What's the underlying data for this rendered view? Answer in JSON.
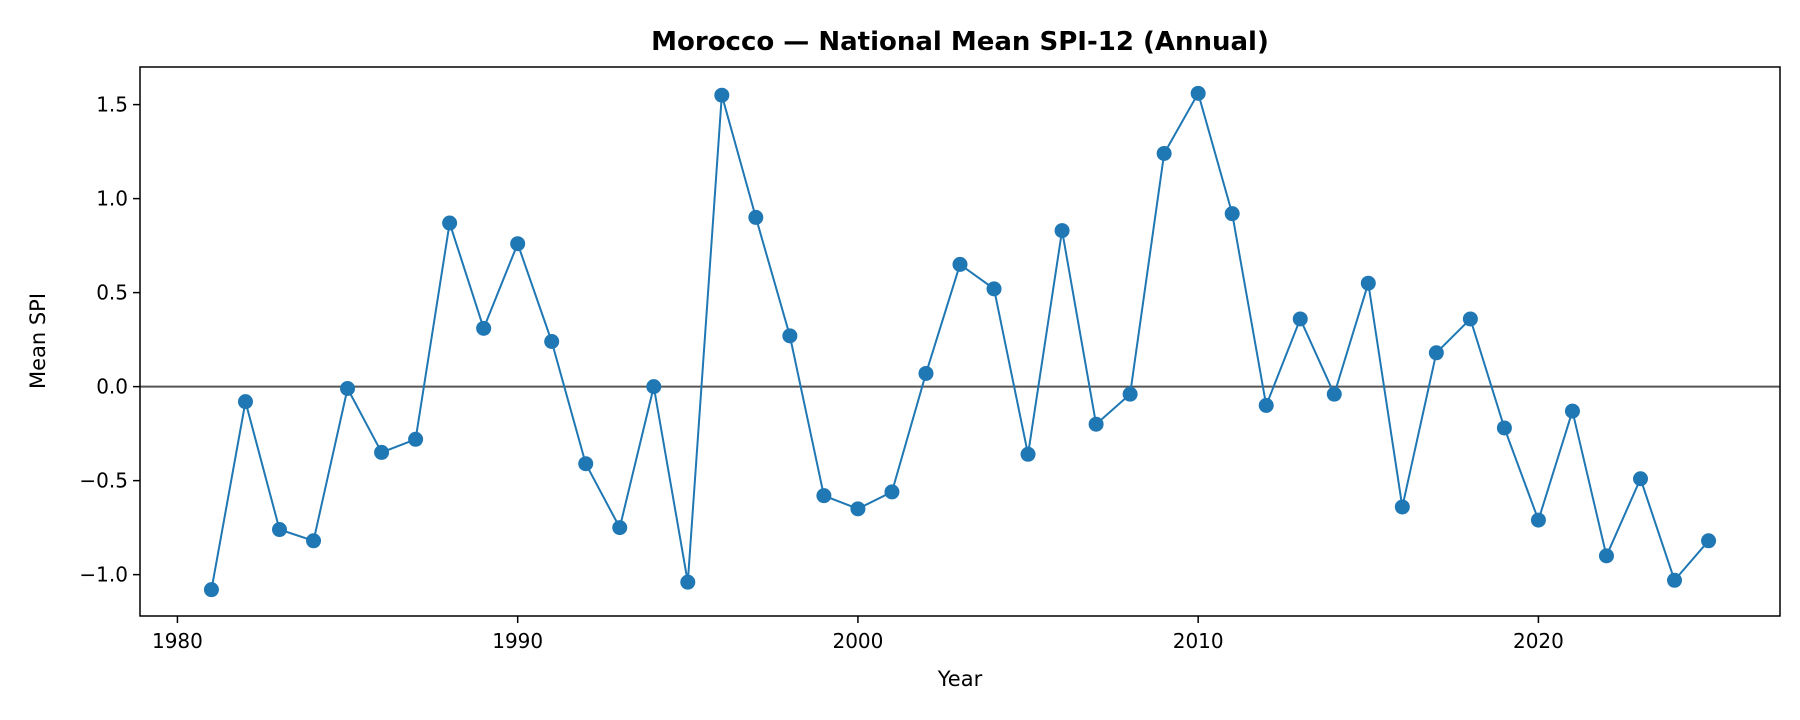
{
  "chart_data": {
    "type": "line",
    "title": "Morocco — National Mean SPI-12 (Annual)",
    "xlabel": "Year",
    "ylabel": "Mean SPI",
    "xlim": [
      1978.9,
      2027.1
    ],
    "ylim": [
      -1.22,
      1.7
    ],
    "xticks": [
      1980,
      1990,
      2000,
      2010,
      2020
    ],
    "xtick_labels": [
      "1980",
      "1990",
      "2000",
      "2010",
      "2020"
    ],
    "yticks": [
      -1.0,
      -0.5,
      0.0,
      0.5,
      1.0,
      1.5
    ],
    "ytick_labels": [
      "−1.0",
      "−0.5",
      "0.0",
      "0.5",
      "1.0",
      "1.5"
    ],
    "reference_line": 0.0,
    "grid": false,
    "series_color": "#1f77b4",
    "reference_line_color": "#555555",
    "x": [
      1981,
      1982,
      1983,
      1984,
      1985,
      1986,
      1987,
      1988,
      1989,
      1990,
      1991,
      1992,
      1993,
      1994,
      1995,
      1996,
      1997,
      1998,
      1999,
      2000,
      2001,
      2002,
      2003,
      2004,
      2005,
      2006,
      2007,
      2008,
      2009,
      2010,
      2011,
      2012,
      2013,
      2014,
      2015,
      2016,
      2017,
      2018,
      2019,
      2020,
      2021,
      2022,
      2023,
      2024,
      2025
    ],
    "series": [
      {
        "values": [
          -1.08,
          -0.08,
          -0.76,
          -0.82,
          -0.01,
          -0.35,
          -0.28,
          0.87,
          0.31,
          0.76,
          0.24,
          -0.41,
          -0.75,
          0.0,
          -1.04,
          1.55,
          0.9,
          0.27,
          -0.58,
          -0.65,
          -0.56,
          0.07,
          0.65,
          0.52,
          -0.36,
          0.83,
          -0.2,
          -0.04,
          1.24,
          1.56,
          0.92,
          -0.1,
          0.36,
          -0.04,
          0.55,
          -0.64,
          0.18,
          0.36,
          -0.22,
          -0.71,
          -0.13,
          -0.9,
          -0.49,
          -1.03,
          -0.82
        ]
      }
    ]
  }
}
